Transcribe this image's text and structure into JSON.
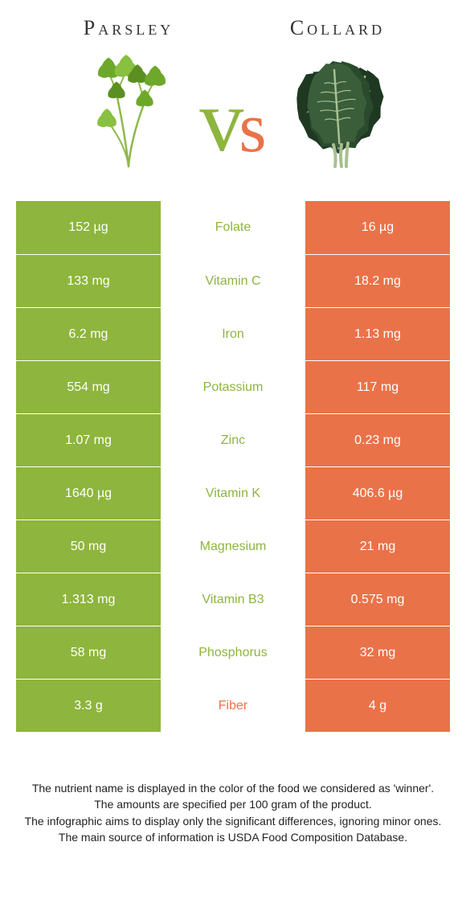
{
  "left": {
    "title": "Parsley",
    "color": "#8eb53d",
    "leaf_colors": [
      "#6da82a",
      "#88c040",
      "#5c8f22"
    ],
    "stem_color": "#8fb84d"
  },
  "right": {
    "title": "Collard",
    "color": "#ea7249",
    "leaf_colors": [
      "#2a4a2e",
      "#3a5d3a",
      "#1e3822"
    ],
    "vein_color": "#a8c090"
  },
  "vs": {
    "v": "v",
    "s": "s"
  },
  "rows": [
    {
      "left": "152 µg",
      "mid": "Folate",
      "right": "16 µg",
      "winner": "left"
    },
    {
      "left": "133 mg",
      "mid": "Vitamin C",
      "right": "18.2 mg",
      "winner": "left"
    },
    {
      "left": "6.2 mg",
      "mid": "Iron",
      "right": "1.13 mg",
      "winner": "left"
    },
    {
      "left": "554 mg",
      "mid": "Potassium",
      "right": "117 mg",
      "winner": "left"
    },
    {
      "left": "1.07 mg",
      "mid": "Zinc",
      "right": "0.23 mg",
      "winner": "left"
    },
    {
      "left": "1640 µg",
      "mid": "Vitamin K",
      "right": "406.6 µg",
      "winner": "left"
    },
    {
      "left": "50 mg",
      "mid": "Magnesium",
      "right": "21 mg",
      "winner": "left"
    },
    {
      "left": "1.313 mg",
      "mid": "Vitamin B3",
      "right": "0.575 mg",
      "winner": "left"
    },
    {
      "left": "58 mg",
      "mid": "Phosphorus",
      "right": "32 mg",
      "winner": "left"
    },
    {
      "left": "3.3 g",
      "mid": "Fiber",
      "right": "4 g",
      "winner": "right"
    }
  ],
  "footer": [
    "The nutrient name is displayed in the color of the food we considered as 'winner'.",
    "The amounts are specified per 100 gram of the product.",
    "The infographic aims to display only the significant differences, ignoring minor ones.",
    "The main source of information is USDA Food Composition Database."
  ]
}
